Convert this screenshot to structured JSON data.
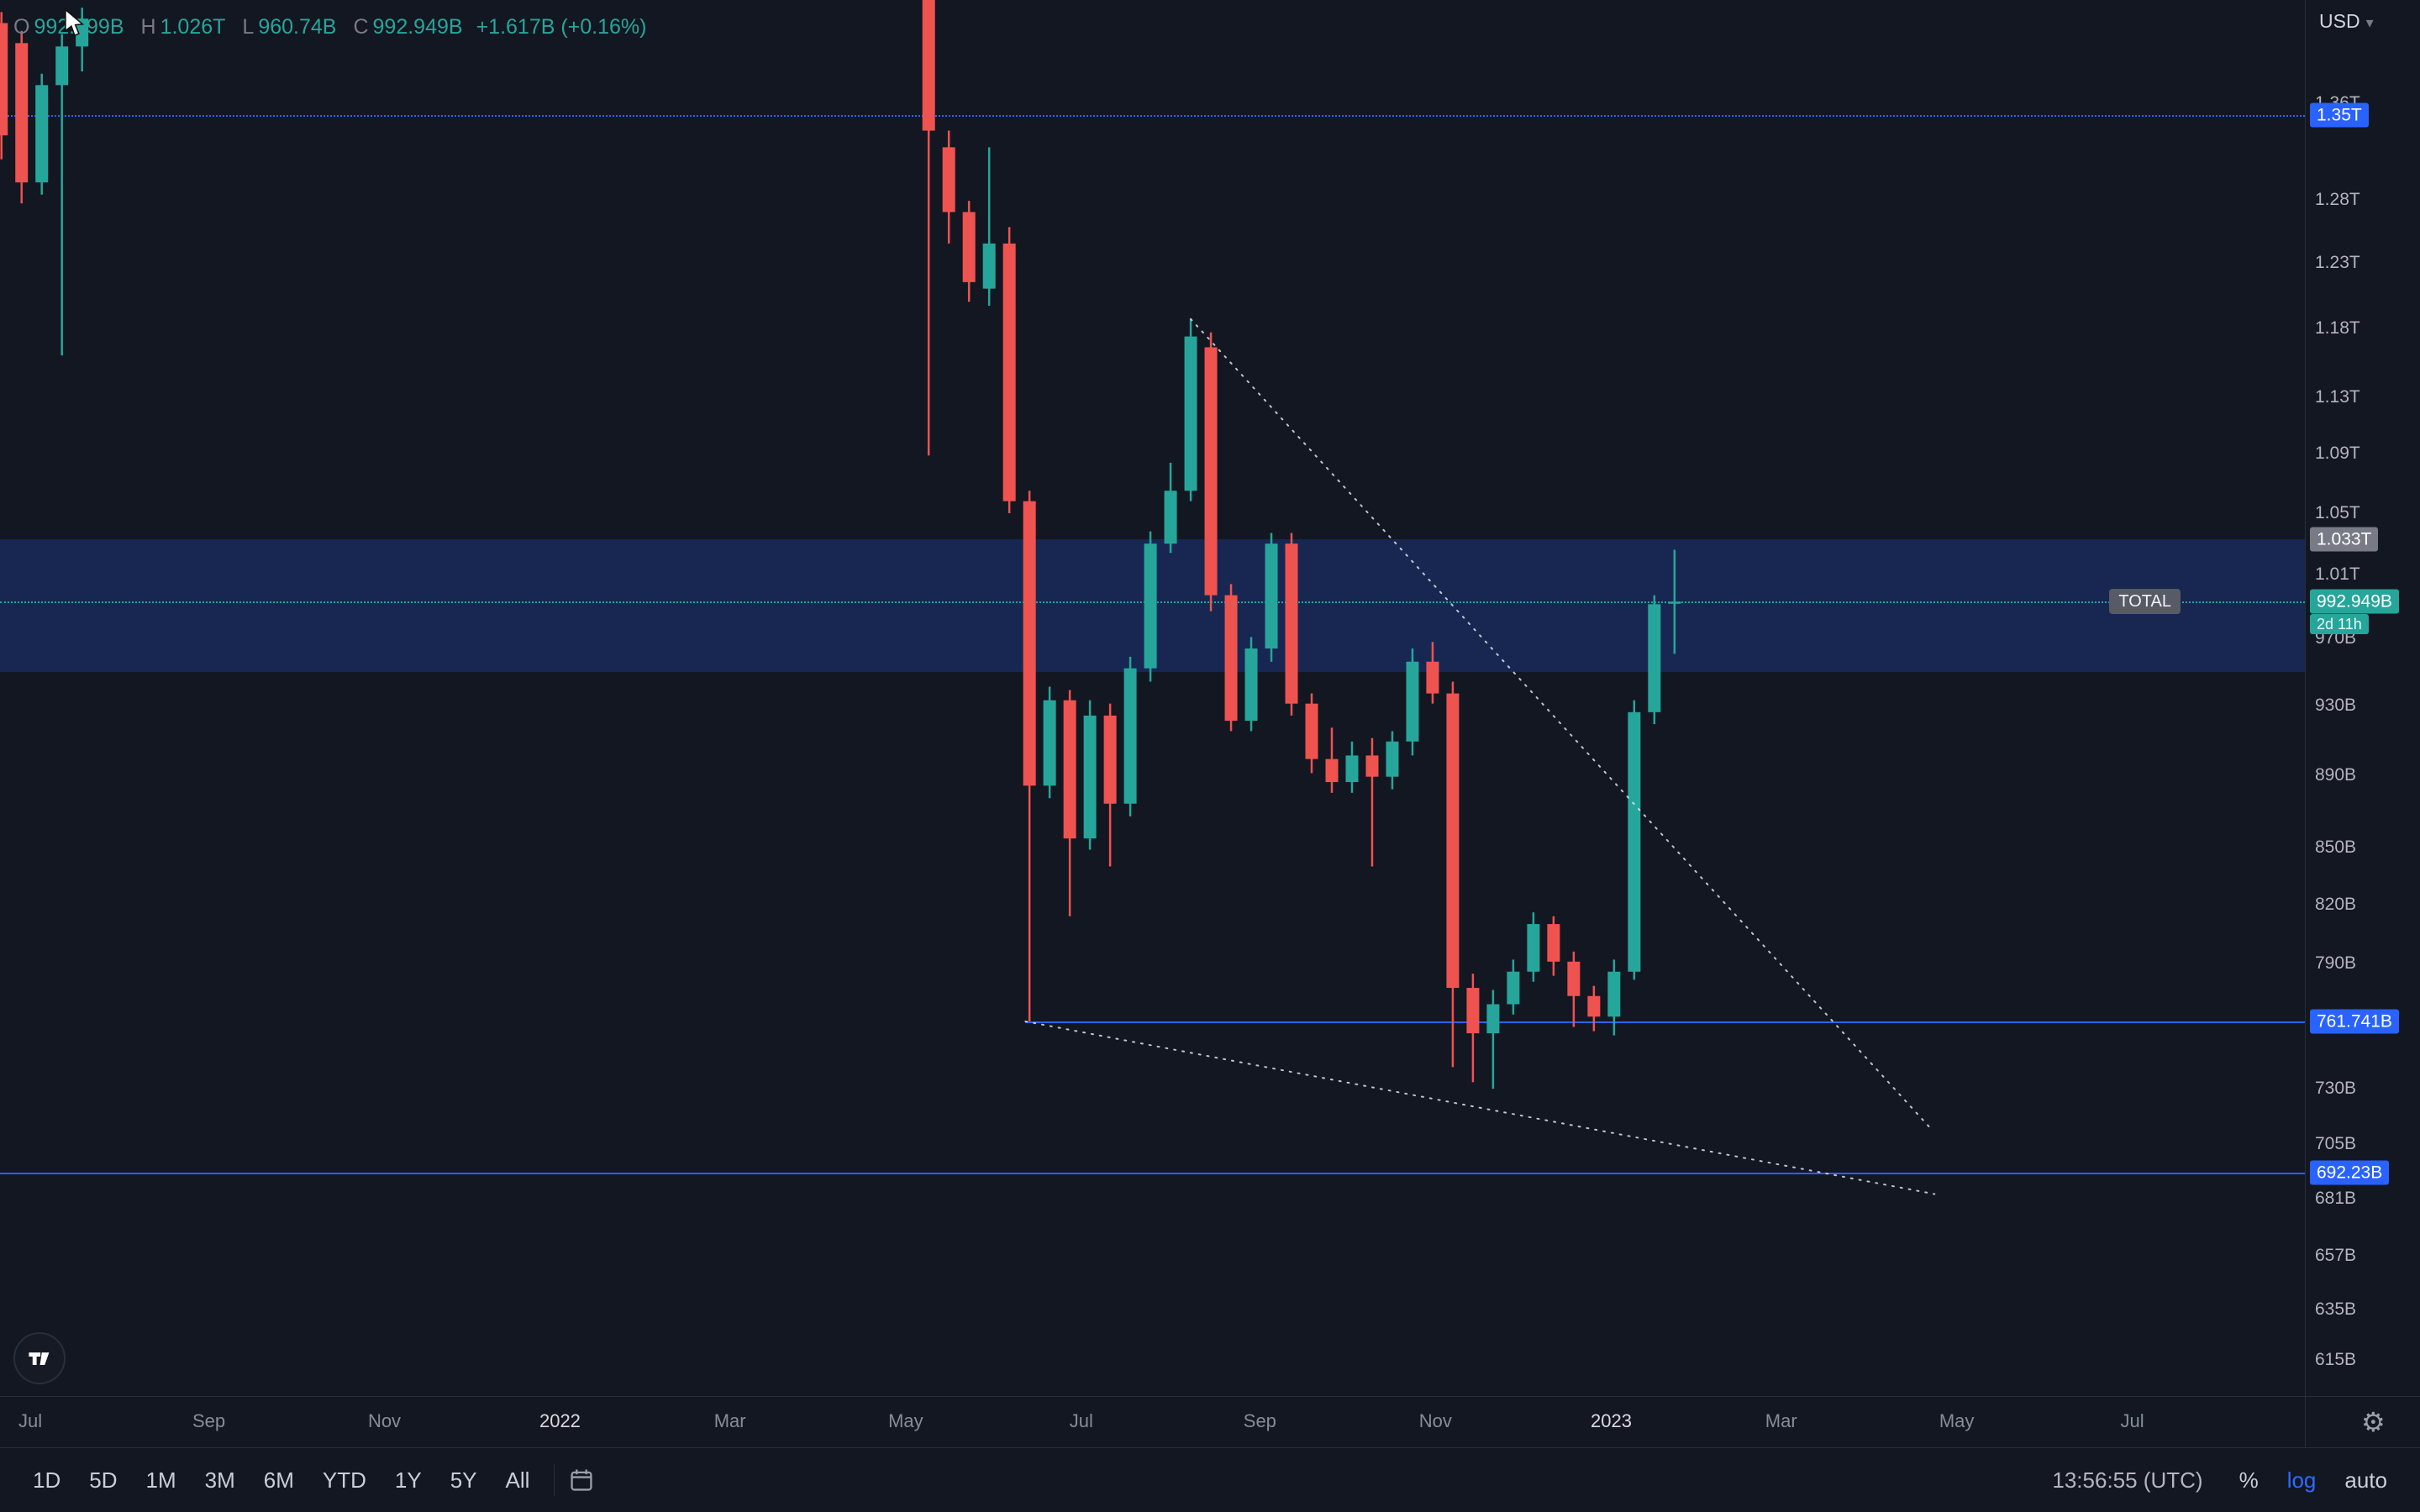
{
  "header": {
    "currency": "USD",
    "legend": {
      "open_label": "O",
      "open_value": "992.299B",
      "high_label": "H",
      "high_value": "1.026T",
      "low_label": "L",
      "low_value": "960.74B",
      "close_label": "C",
      "close_value": "992.949B",
      "change": "+1.617B (+0.16%)"
    }
  },
  "toolbar": {
    "ranges": [
      "1D",
      "5D",
      "1M",
      "3M",
      "6M",
      "YTD",
      "1Y",
      "5Y",
      "All"
    ],
    "clock": "13:56:55 (UTC)",
    "percent_label": "%",
    "log_label": "log",
    "auto_label": "auto"
  },
  "chart_data": {
    "type": "candlestick",
    "symbol": "TOTAL",
    "unit": "billions USD",
    "y_scale": "log",
    "y_range_visible": [
      601,
      1452
    ],
    "colors": {
      "up": "#26a69a",
      "down": "#ef5350",
      "level_blue": "#2962ff",
      "zone": "rgba(41,98,255,0.22)",
      "trendline": "#dfe3ea",
      "current": "#26a69a"
    },
    "y_ticks": [
      {
        "label": "1.36T",
        "v": 1360
      },
      {
        "label": "1.28T",
        "v": 1280
      },
      {
        "label": "1.23T",
        "v": 1230
      },
      {
        "label": "1.18T",
        "v": 1180
      },
      {
        "label": "1.13T",
        "v": 1130
      },
      {
        "label": "1.09T",
        "v": 1090
      },
      {
        "label": "1.05T",
        "v": 1050
      },
      {
        "label": "1.01T",
        "v": 1010
      },
      {
        "label": "970B",
        "v": 970
      },
      {
        "label": "930B",
        "v": 930
      },
      {
        "label": "890B",
        "v": 890
      },
      {
        "label": "850B",
        "v": 850
      },
      {
        "label": "820B",
        "v": 820
      },
      {
        "label": "790B",
        "v": 790
      },
      {
        "label": "730B",
        "v": 730
      },
      {
        "label": "705B",
        "v": 705
      },
      {
        "label": "681B",
        "v": 681
      },
      {
        "label": "657B",
        "v": 657
      },
      {
        "label": "635B",
        "v": 635
      },
      {
        "label": "615B",
        "v": 615
      }
    ],
    "y_badges": [
      {
        "label": "1.35T",
        "v": 1350,
        "bg": "#2962ff"
      },
      {
        "label": "1.033T",
        "v": 1033,
        "bg": "#787b86"
      },
      {
        "label": "761.741B",
        "v": 761.741,
        "bg": "#2962ff"
      },
      {
        "label": "692.23B",
        "v": 692.23,
        "bg": "#2962ff"
      }
    ],
    "current": {
      "label": "992.949B",
      "v": 992.949,
      "countdown": "2d 11h"
    },
    "zone": {
      "top": 1033,
      "bottom": 950,
      "top_label": "1.033T"
    },
    "levels": [
      {
        "label": "1.35T",
        "v": 1350,
        "style": "dotted",
        "color": "#2962ff",
        "from_w": null
      },
      {
        "label": "761.741B",
        "v": 761.741,
        "style": "solid",
        "color": "#2962ff",
        "from_w": 50.8
      },
      {
        "label": "692.23B",
        "v": 692.23,
        "style": "solid",
        "color": "#2962ff",
        "from_w": null
      }
    ],
    "x_ticks": [
      {
        "label": "Jul",
        "w": 1.43,
        "year": false
      },
      {
        "label": "Sep",
        "w": 10.29,
        "year": false
      },
      {
        "label": "Nov",
        "w": 19.0,
        "year": false
      },
      {
        "label": "2022",
        "w": 27.71,
        "year": true
      },
      {
        "label": "Mar",
        "w": 36.14,
        "year": false
      },
      {
        "label": "May",
        "w": 44.86,
        "year": false
      },
      {
        "label": "Jul",
        "w": 53.57,
        "year": false
      },
      {
        "label": "Sep",
        "w": 62.43,
        "year": false
      },
      {
        "label": "Nov",
        "w": 71.14,
        "year": false
      },
      {
        "label": "2023",
        "w": 79.86,
        "year": true
      },
      {
        "label": "Mar",
        "w": 88.29,
        "year": false
      },
      {
        "label": "May",
        "w": 97.0,
        "year": false
      },
      {
        "label": "Jul",
        "w": 105.71,
        "year": false
      }
    ],
    "trendlines": [
      {
        "w1": 59.0,
        "p1": 1187,
        "w2": 95.8,
        "p2": 711
      },
      {
        "w1": 50.8,
        "p1": 761.7,
        "w2": 95.9,
        "p2": 683
      }
    ],
    "candles": [
      [
        0,
        1431,
        1441,
        1313,
        1333
      ],
      [
        1,
        1413,
        1424,
        1277,
        1294
      ],
      [
        2,
        1294,
        1386,
        1284,
        1376
      ],
      [
        3,
        1376,
        1421,
        1160,
        1410
      ],
      [
        4,
        1410,
        1445,
        1388,
        1435
      ],
      [
        46,
        1480,
        1490,
        1089,
        1337
      ],
      [
        47,
        1323,
        1337,
        1245,
        1270
      ],
      [
        48,
        1270,
        1279,
        1200,
        1215
      ],
      [
        49,
        1210,
        1323,
        1197,
        1245
      ],
      [
        50,
        1245,
        1258,
        1050,
        1058
      ],
      [
        51,
        1058,
        1065,
        761.74,
        884
      ],
      [
        52,
        884,
        941,
        877,
        933
      ],
      [
        53,
        933,
        939,
        814,
        855
      ],
      [
        54,
        855,
        933,
        849,
        924
      ],
      [
        55,
        924,
        931,
        840,
        874
      ],
      [
        56,
        874,
        959,
        867,
        952
      ],
      [
        57,
        952,
        1038,
        944,
        1030
      ],
      [
        58,
        1030,
        1084,
        1024,
        1065
      ],
      [
        59,
        1065,
        1187,
        1058,
        1174
      ],
      [
        60,
        1166,
        1177,
        987,
        997
      ],
      [
        61,
        997,
        1004,
        915,
        921
      ],
      [
        62,
        921,
        971,
        915,
        964
      ],
      [
        63,
        964,
        1037,
        956,
        1030
      ],
      [
        64,
        1030,
        1037,
        924,
        931
      ],
      [
        65,
        931,
        937,
        891,
        899
      ],
      [
        66,
        899,
        917,
        880,
        886
      ],
      [
        67,
        886,
        909,
        880,
        901
      ],
      [
        68,
        901,
        911,
        840,
        889
      ],
      [
        69,
        889,
        915,
        882,
        909
      ],
      [
        70,
        909,
        964,
        901,
        956
      ],
      [
        71,
        956,
        968,
        931,
        937
      ],
      [
        72,
        937,
        944,
        740,
        778
      ],
      [
        73,
        778,
        785,
        733,
        756
      ],
      [
        74,
        756,
        777,
        730,
        770
      ],
      [
        75,
        770,
        792,
        765,
        786
      ],
      [
        76,
        786,
        816,
        781,
        810
      ],
      [
        77,
        810,
        814,
        784,
        791
      ],
      [
        78,
        791,
        796,
        759,
        774
      ],
      [
        79,
        774,
        779,
        757,
        764
      ],
      [
        80,
        764,
        792,
        755,
        786
      ],
      [
        81,
        786,
        933,
        782,
        926
      ],
      [
        82,
        926,
        997,
        919,
        991.33
      ],
      [
        83,
        992.3,
        1026,
        960.74,
        992.95
      ]
    ]
  }
}
